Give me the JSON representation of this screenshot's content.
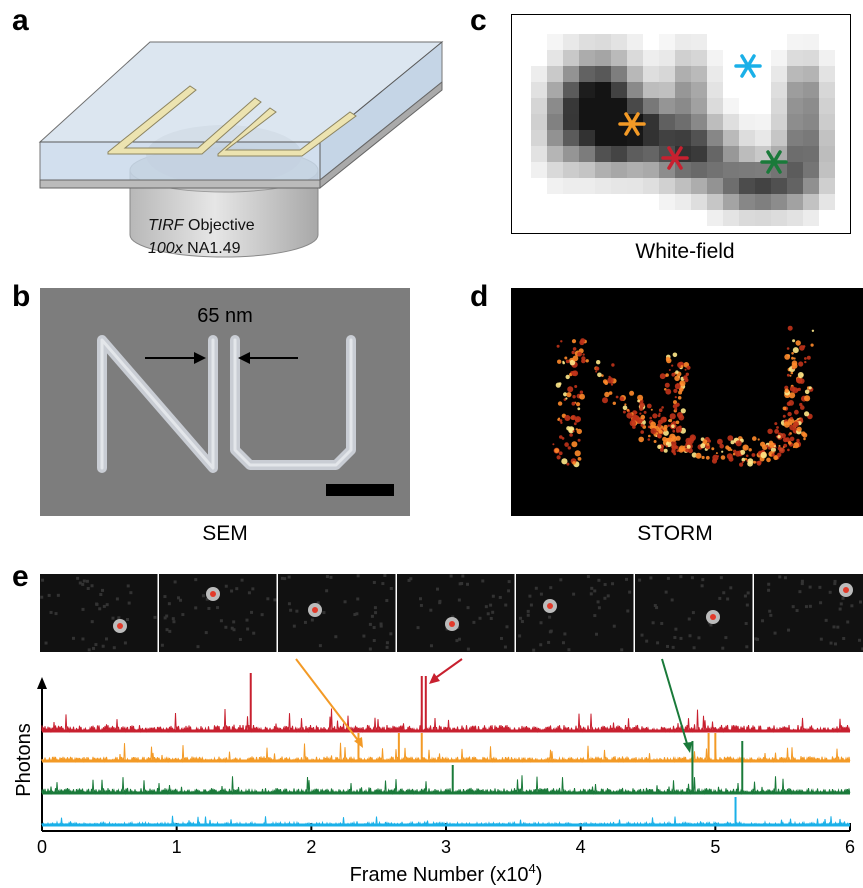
{
  "panels": {
    "a": {
      "letter": "a",
      "objective_line1_italic": "TIRF",
      "objective_line1_rest": " Objective",
      "objective_line2_italic": "100x",
      "objective_line2_rest": " NA1.49"
    },
    "b": {
      "letter": "b",
      "gap_label": "65 nm",
      "caption": "SEM"
    },
    "c": {
      "letter": "c",
      "caption": "White-field",
      "marker_colors": {
        "orange": "#f39a26",
        "red": "#c8202f",
        "green": "#1a7a3a",
        "blue": "#1ab0e8"
      }
    },
    "d": {
      "letter": "d",
      "caption": "STORM"
    },
    "e": {
      "letter": "e",
      "frames_count": 7,
      "ylabel": "Photons",
      "xlabel": "Frame Number (x10",
      "xlabel_sup": "4",
      "xlabel_end": ")",
      "trace_colors": [
        "#c8202f",
        "#f39a26",
        "#1a7a3a",
        "#1ab0e8"
      ]
    }
  },
  "chart_data": {
    "type": "line",
    "title": "",
    "xlabel": "Frame Number (x10^4)",
    "ylabel": "Photons",
    "xlim": [
      0,
      6
    ],
    "x_ticks": [
      "0",
      "1",
      "2",
      "3",
      "4",
      "5",
      "6"
    ],
    "series": [
      {
        "color": "#c8202f",
        "notable_spikes_x": [
          1.55,
          2.82,
          2.85
        ]
      },
      {
        "color": "#f39a26",
        "notable_spikes_x": [
          2.35,
          2.65,
          2.82,
          4.95,
          5.0
        ]
      },
      {
        "color": "#1a7a3a",
        "notable_spikes_x": [
          3.05,
          4.83,
          5.2
        ]
      },
      {
        "color": "#1ab0e8",
        "notable_spikes_x": [
          5.15
        ]
      }
    ]
  }
}
